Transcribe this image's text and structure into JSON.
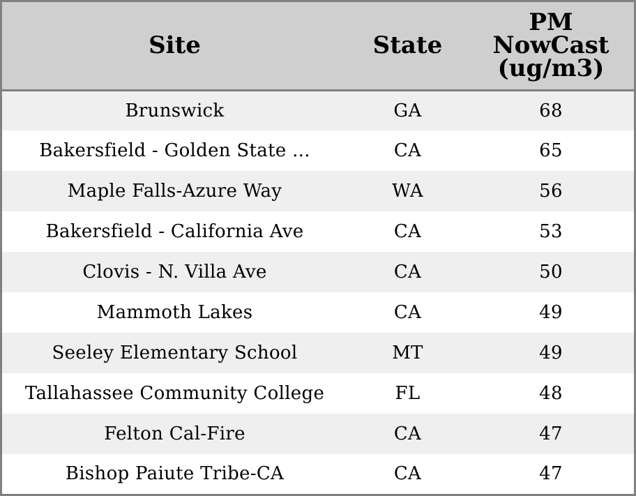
{
  "chart_data": {
    "type": "table",
    "columns": [
      "Site",
      "State",
      "PM NowCast (ug/m3)"
    ],
    "header_lines": {
      "site": "Site",
      "state": "State",
      "pm": [
        "PM",
        "NowCast",
        "(ug/m3)"
      ]
    },
    "rows": [
      {
        "site": "Brunswick",
        "state": "GA",
        "pm": "68"
      },
      {
        "site": "Bakersfield - Golden State ...",
        "state": "CA",
        "pm": "65"
      },
      {
        "site": "Maple Falls-Azure Way",
        "state": "WA",
        "pm": "56"
      },
      {
        "site": "Bakersfield - California Ave",
        "state": "CA",
        "pm": "53"
      },
      {
        "site": "Clovis - N. Villa Ave",
        "state": "CA",
        "pm": "50"
      },
      {
        "site": "Mammoth Lakes",
        "state": "CA",
        "pm": "49"
      },
      {
        "site": "Seeley Elementary School",
        "state": "MT",
        "pm": "49"
      },
      {
        "site": "Tallahassee Community College",
        "state": "FL",
        "pm": "48"
      },
      {
        "site": "Felton Cal-Fire",
        "state": "CA",
        "pm": "47"
      },
      {
        "site": "Bishop Paiute Tribe-CA",
        "state": "CA",
        "pm": "47"
      }
    ]
  },
  "colors": {
    "header_bg": "#cfcfcf",
    "row_odd_bg": "#efefef",
    "row_even_bg": "#ffffff",
    "border": "#808080"
  }
}
